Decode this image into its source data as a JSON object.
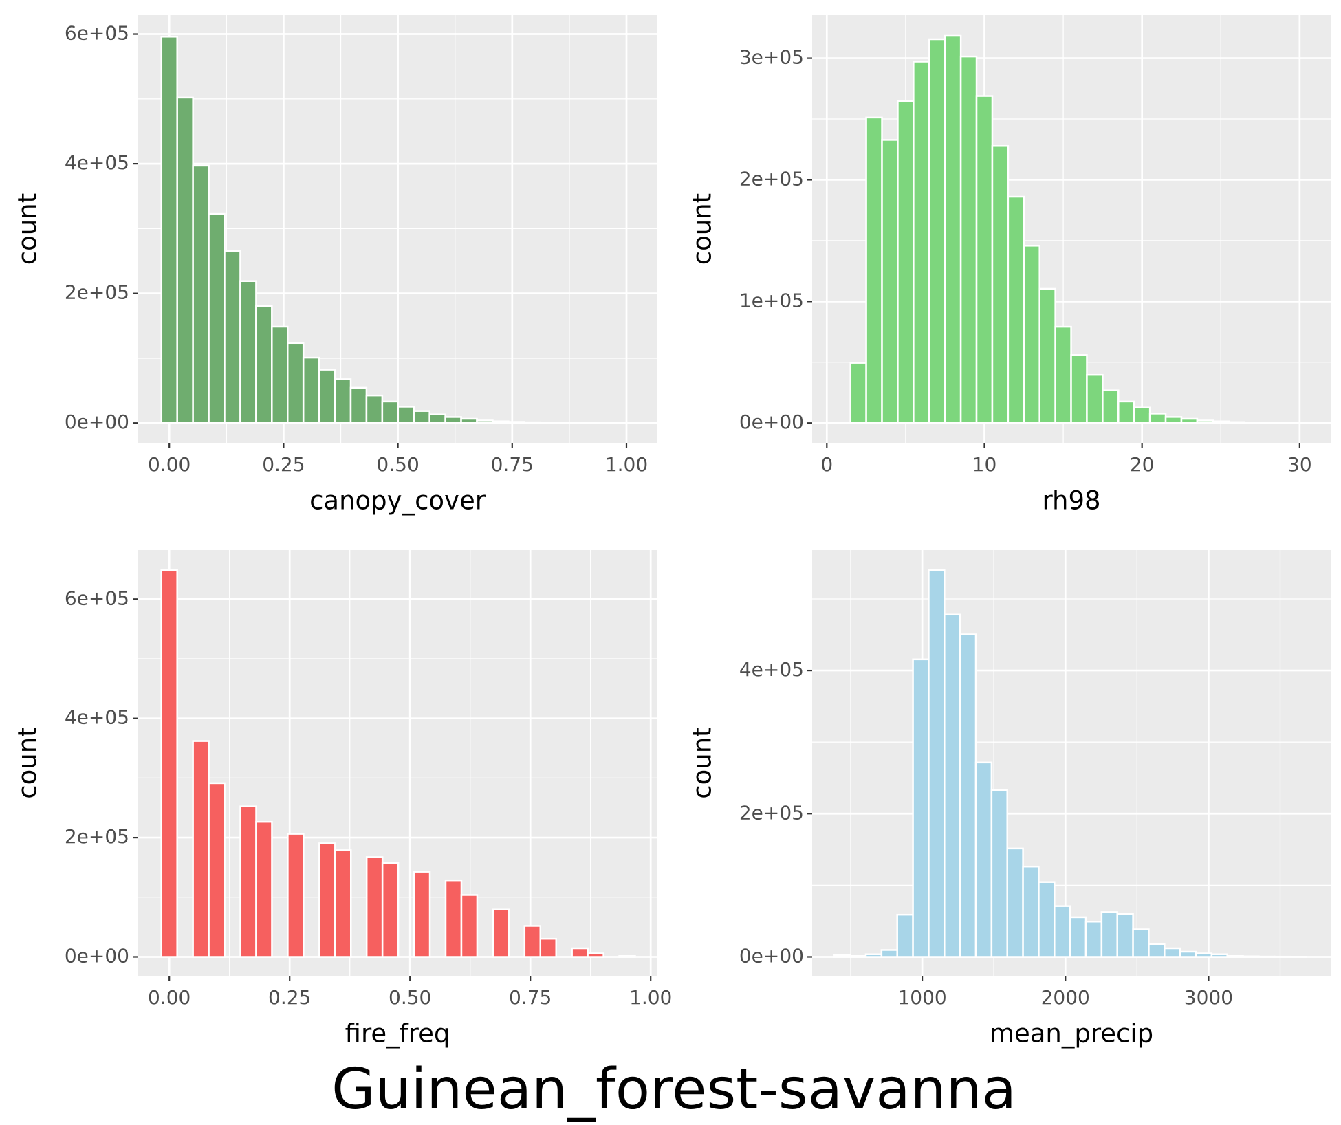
{
  "title": "Guinean_forest-savanna",
  "chart_data": [
    {
      "type": "histogram",
      "x_label": "canopy_cover",
      "y_label": "count",
      "color": "#6fad6f",
      "grid": true,
      "bins": [
        -0.0172,
        0.0173,
        0.0518,
        0.0863,
        0.1208,
        0.1553,
        0.1898,
        0.2243,
        0.2588,
        0.2933,
        0.3278,
        0.3623,
        0.3968,
        0.4313,
        0.4658,
        0.5003,
        0.5348,
        0.5693,
        0.6038,
        0.6383,
        0.6728,
        0.7073,
        0.7418,
        0.7763,
        0.8108,
        0.8453,
        0.8798,
        0.9143,
        0.9488,
        0.9833,
        1.0178
      ],
      "values": [
        596000,
        502000,
        397000,
        322600,
        265500,
        219000,
        180500,
        148700,
        123500,
        100900,
        82300,
        67700,
        54400,
        42500,
        33200,
        25200,
        18600,
        13300,
        9300,
        6600,
        4000,
        2700,
        1800,
        1200,
        800,
        500,
        300,
        200,
        100,
        50
      ],
      "xlim": [
        -0.0695,
        1.0677
      ],
      "ylim": [
        -30530,
        629200
      ],
      "xticks": [
        {
          "value": 0,
          "label": "0.00"
        },
        0.25,
        {
          "value": 0.5,
          "label": "0.50"
        },
        0.75,
        {
          "value": 1,
          "label": "1.00"
        }
      ],
      "yticks": [
        {
          "value": 0,
          "label": "0e+00"
        },
        {
          "value": 200000,
          "label": "2e+05"
        },
        {
          "value": 400000,
          "label": "4e+05"
        },
        {
          "value": 600000,
          "label": "6e+05"
        }
      ]
    },
    {
      "type": "histogram",
      "x_label": "rh98",
      "y_label": "count",
      "color": "#7dd67d",
      "grid": true,
      "bins": [
        1.5,
        2.5,
        3.5,
        4.5,
        5.5,
        6.5,
        7.5,
        8.5,
        9.5,
        10.5,
        11.5,
        12.5,
        13.5,
        14.5,
        15.5,
        16.5,
        17.5,
        18.5,
        19.5,
        20.5,
        21.5,
        22.5,
        23.5,
        24.5,
        25.5,
        26.5,
        27.5,
        28.5,
        29.5,
        30.5
      ],
      "values": [
        49500,
        251200,
        232800,
        264600,
        297200,
        315600,
        318400,
        301400,
        268900,
        227800,
        186100,
        145800,
        110400,
        79200,
        55900,
        39600,
        26900,
        17700,
        12700,
        7800,
        5000,
        3500,
        2100,
        1400,
        800,
        500,
        300,
        200,
        100
      ],
      "xlim": [
        -0.93,
        31.97
      ],
      "ylim": [
        -16270,
        335380
      ],
      "xticks": [
        0,
        10,
        20,
        30
      ],
      "yticks": [
        {
          "value": 0,
          "label": "0e+00"
        },
        {
          "value": 100000,
          "label": "1e+05"
        },
        {
          "value": 200000,
          "label": "2e+05"
        },
        {
          "value": 300000,
          "label": "3e+05"
        }
      ]
    },
    {
      "type": "histogram",
      "x_label": "fire_freq",
      "y_label": "count",
      "color": "#f6605f",
      "grid": true,
      "bins": [
        -0.0164,
        0.0164,
        0.0492,
        0.082,
        0.1148,
        0.1476,
        0.1804,
        0.2132,
        0.246,
        0.2788,
        0.3116,
        0.3444,
        0.3772,
        0.41,
        0.4428,
        0.4756,
        0.5084,
        0.5412,
        0.574,
        0.6068,
        0.6396,
        0.6724,
        0.7052,
        0.738,
        0.7708,
        0.8036,
        0.8364,
        0.8692,
        0.902,
        0.9348,
        0.9676
      ],
      "values": [
        649000,
        0,
        362000,
        291300,
        0,
        252400,
        226400,
        0,
        206300,
        0,
        190400,
        178900,
        0,
        167300,
        157200,
        0,
        142800,
        0,
        128400,
        103800,
        0,
        79300,
        0,
        51900,
        30300,
        0,
        14400,
        5800,
        0,
        1400
      ],
      "xlim": [
        -0.066,
        1.014
      ],
      "ylim": [
        -31730,
        682200
      ],
      "xticks": [
        {
          "value": 0,
          "label": "0.00"
        },
        0.25,
        {
          "value": 0.5,
          "label": "0.50"
        },
        0.75,
        {
          "value": 1,
          "label": "1.00"
        }
      ],
      "yticks": [
        {
          "value": 0,
          "label": "0e+00"
        },
        {
          "value": 200000,
          "label": "2e+05"
        },
        {
          "value": 400000,
          "label": "4e+05"
        },
        {
          "value": 600000,
          "label": "6e+05"
        }
      ]
    },
    {
      "type": "histogram",
      "x_label": "mean_precip",
      "y_label": "count",
      "color": "#a8d5e8",
      "grid": true,
      "bins": [
        386.1,
        495.9,
        605.7,
        715.5,
        825.3,
        935.1,
        1044.9,
        1154.7,
        1264.5,
        1374.3,
        1484.1,
        1593.9,
        1703.7,
        1813.5,
        1923.3,
        2033.1,
        2142.9,
        2252.7,
        2362.5,
        2472.3,
        2582.1,
        2691.9,
        2801.7,
        2911.5,
        3021.3,
        3131.1,
        3240.9,
        3350.7,
        3460.5,
        3570.3,
        3680.1
      ],
      "values": [
        2400,
        1200,
        3600,
        9600,
        58900,
        415600,
        540500,
        478100,
        450500,
        271500,
        233000,
        151400,
        126100,
        104500,
        70900,
        55300,
        49200,
        62500,
        60100,
        38400,
        18000,
        12000,
        7200,
        4800,
        3600,
        1200,
        700,
        400,
        300,
        200
      ],
      "xlim": [
        231,
        3853
      ],
      "ylim": [
        -26430,
        568170
      ],
      "xticks": [
        1000,
        2000,
        3000
      ],
      "yticks": [
        {
          "value": 0,
          "label": "0e+00"
        },
        {
          "value": 200000,
          "label": "2e+05"
        },
        {
          "value": 400000,
          "label": "4e+05"
        }
      ]
    }
  ]
}
